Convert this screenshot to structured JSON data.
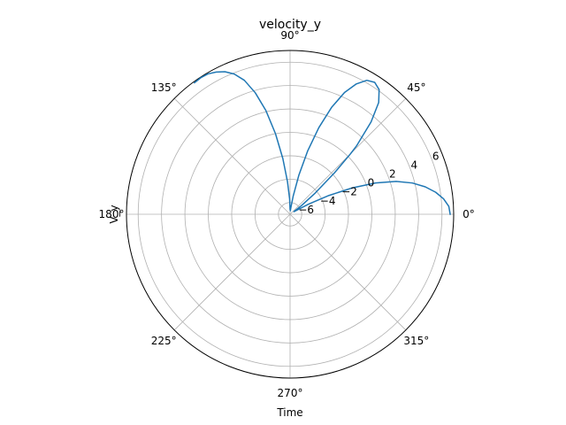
{
  "chart_data": {
    "type": "line",
    "projection": "polar",
    "title": "velocity_y",
    "xlabel": "Time",
    "ylabel": "V_y",
    "theta_unit": "degrees",
    "theta_ticks": [
      "0°",
      "45°",
      "90°",
      "135°",
      "180°",
      "225°",
      "270°",
      "315°"
    ],
    "r_tick_labels": [
      "−6",
      "−4",
      "−2",
      "0",
      "2",
      "4",
      "6"
    ],
    "r_tick_values": [
      -6,
      -4,
      -2,
      0,
      2,
      4,
      6
    ],
    "rlim": [
      -7,
      7
    ],
    "rlabel_angle_deg": 22.5,
    "grid": true,
    "series": [
      {
        "color": "#1f77b4",
        "x": [
          0.0,
          0.05,
          0.1,
          0.15,
          0.2,
          0.25,
          0.3,
          0.35,
          0.4,
          0.45,
          0.5,
          0.55,
          0.6,
          0.65,
          0.7,
          0.75,
          0.785,
          0.8,
          0.85,
          0.9,
          0.95,
          1.0,
          1.05,
          1.1,
          1.15,
          1.2,
          1.25,
          1.3,
          1.35,
          1.4,
          1.45,
          1.5,
          1.55,
          1.5708,
          1.6,
          1.65,
          1.7,
          1.75,
          1.8,
          1.85,
          1.9,
          1.95,
          2.0,
          2.05,
          2.1,
          2.15,
          2.2
        ],
        "y": [
          6.7,
          6.6,
          6.2,
          5.6,
          4.8,
          3.8,
          2.5,
          0.8,
          -1.2,
          -3.3,
          -5.2,
          -6.4,
          -6.6,
          -5.8,
          -4.2,
          -1.8,
          0.3,
          1.2,
          3.5,
          5.2,
          6.1,
          6.4,
          6.2,
          5.5,
          4.4,
          2.8,
          0.8,
          -1.4,
          -3.6,
          -5.4,
          -6.4,
          -6.7,
          -6.5,
          -6.6,
          -5.7,
          -4.2,
          -2.2,
          0.0,
          2.1,
          3.8,
          5.1,
          5.9,
          6.4,
          6.7,
          6.9,
          6.95,
          6.9
        ]
      }
    ]
  }
}
